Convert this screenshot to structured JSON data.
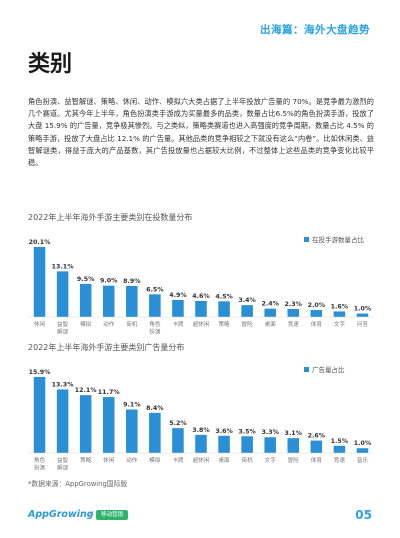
{
  "header": {
    "tag": "出海篇：海外大盘趋势"
  },
  "page": {
    "title": "类别",
    "paragraph": "角色扮演、益智解谜、策略、休闲、动作、模拟六大类占据了上半年投放广告量的 70%。是竞争最为激烈的几个赛道。尤其今年上半年，角色扮演类手游成为买量最多的品类，数量占比6.5%的角色扮演手游，投放了大盘 15.9% 的广告量，竞争极其惨烈。与之类似，策略类赛道也进入高强度的竞争周期，数量占比 4.5% 的策略手游，投放了大盘占比 12.1% 的广告量。其他品类的竞争相较之下就没有这么“内卷”。比如休闲类、益智解谜类，得益于庞大的产品基数，其广告投放量也占据较大比例，不过整体上这些品类的竞争变化比较平稳。",
    "source": "*数据来源：AppGrowing国际版",
    "page_number": "05"
  },
  "footer": {
    "brand": "AppGrowing",
    "separator": "×",
    "partner": "移动营销"
  },
  "colors": {
    "accent": "#29a3e0",
    "bar": "#2b8fd6"
  },
  "chart_data": [
    {
      "type": "bar",
      "title": "2022年上半年海外手游主要类别在投数量分布",
      "legend": "在投手游数量占比",
      "categories": [
        "休闲",
        "益智解谜",
        "模拟",
        "动作",
        "街机",
        "角色扮演",
        "卡牌",
        "超休闲",
        "策略",
        "冒险",
        "桌面",
        "竞速",
        "体育",
        "文字",
        "问答"
      ],
      "values": [
        20.1,
        13.1,
        9.5,
        9.0,
        8.9,
        6.5,
        4.9,
        4.6,
        4.5,
        3.4,
        2.4,
        2.3,
        2.0,
        1.6,
        1.0
      ],
      "labels": [
        "20.1%",
        "13.1%",
        "9.5%",
        "9.0%",
        "8.9%",
        "6.5%",
        "4.9%",
        "4.6%",
        "4.5%",
        "3.4%",
        "2.4%",
        "2.3%",
        "2.0%",
        "1.6%",
        "1.0%"
      ]
    },
    {
      "type": "bar",
      "title": "2022年上半年海外手游主要类别广告量分布",
      "legend": "广告量占比",
      "categories": [
        "角色扮演",
        "益智解谜",
        "策略",
        "休闲",
        "动作",
        "模拟",
        "卡牌",
        "超休闲",
        "桌面",
        "街机",
        "文字",
        "冒险",
        "体育",
        "竞速",
        "音乐"
      ],
      "values": [
        15.9,
        13.3,
        12.1,
        11.7,
        9.1,
        8.4,
        5.2,
        3.8,
        3.6,
        3.5,
        3.3,
        3.1,
        2.6,
        1.5,
        1.0
      ],
      "labels": [
        "15.9%",
        "13.3%",
        "12.1%",
        "11.7%",
        "9.1%",
        "8.4%",
        "5.2%",
        "3.8%",
        "3.6%",
        "3.5%",
        "3.3%",
        "3.1%",
        "2.6%",
        "1.5%",
        "1.0%"
      ]
    }
  ]
}
